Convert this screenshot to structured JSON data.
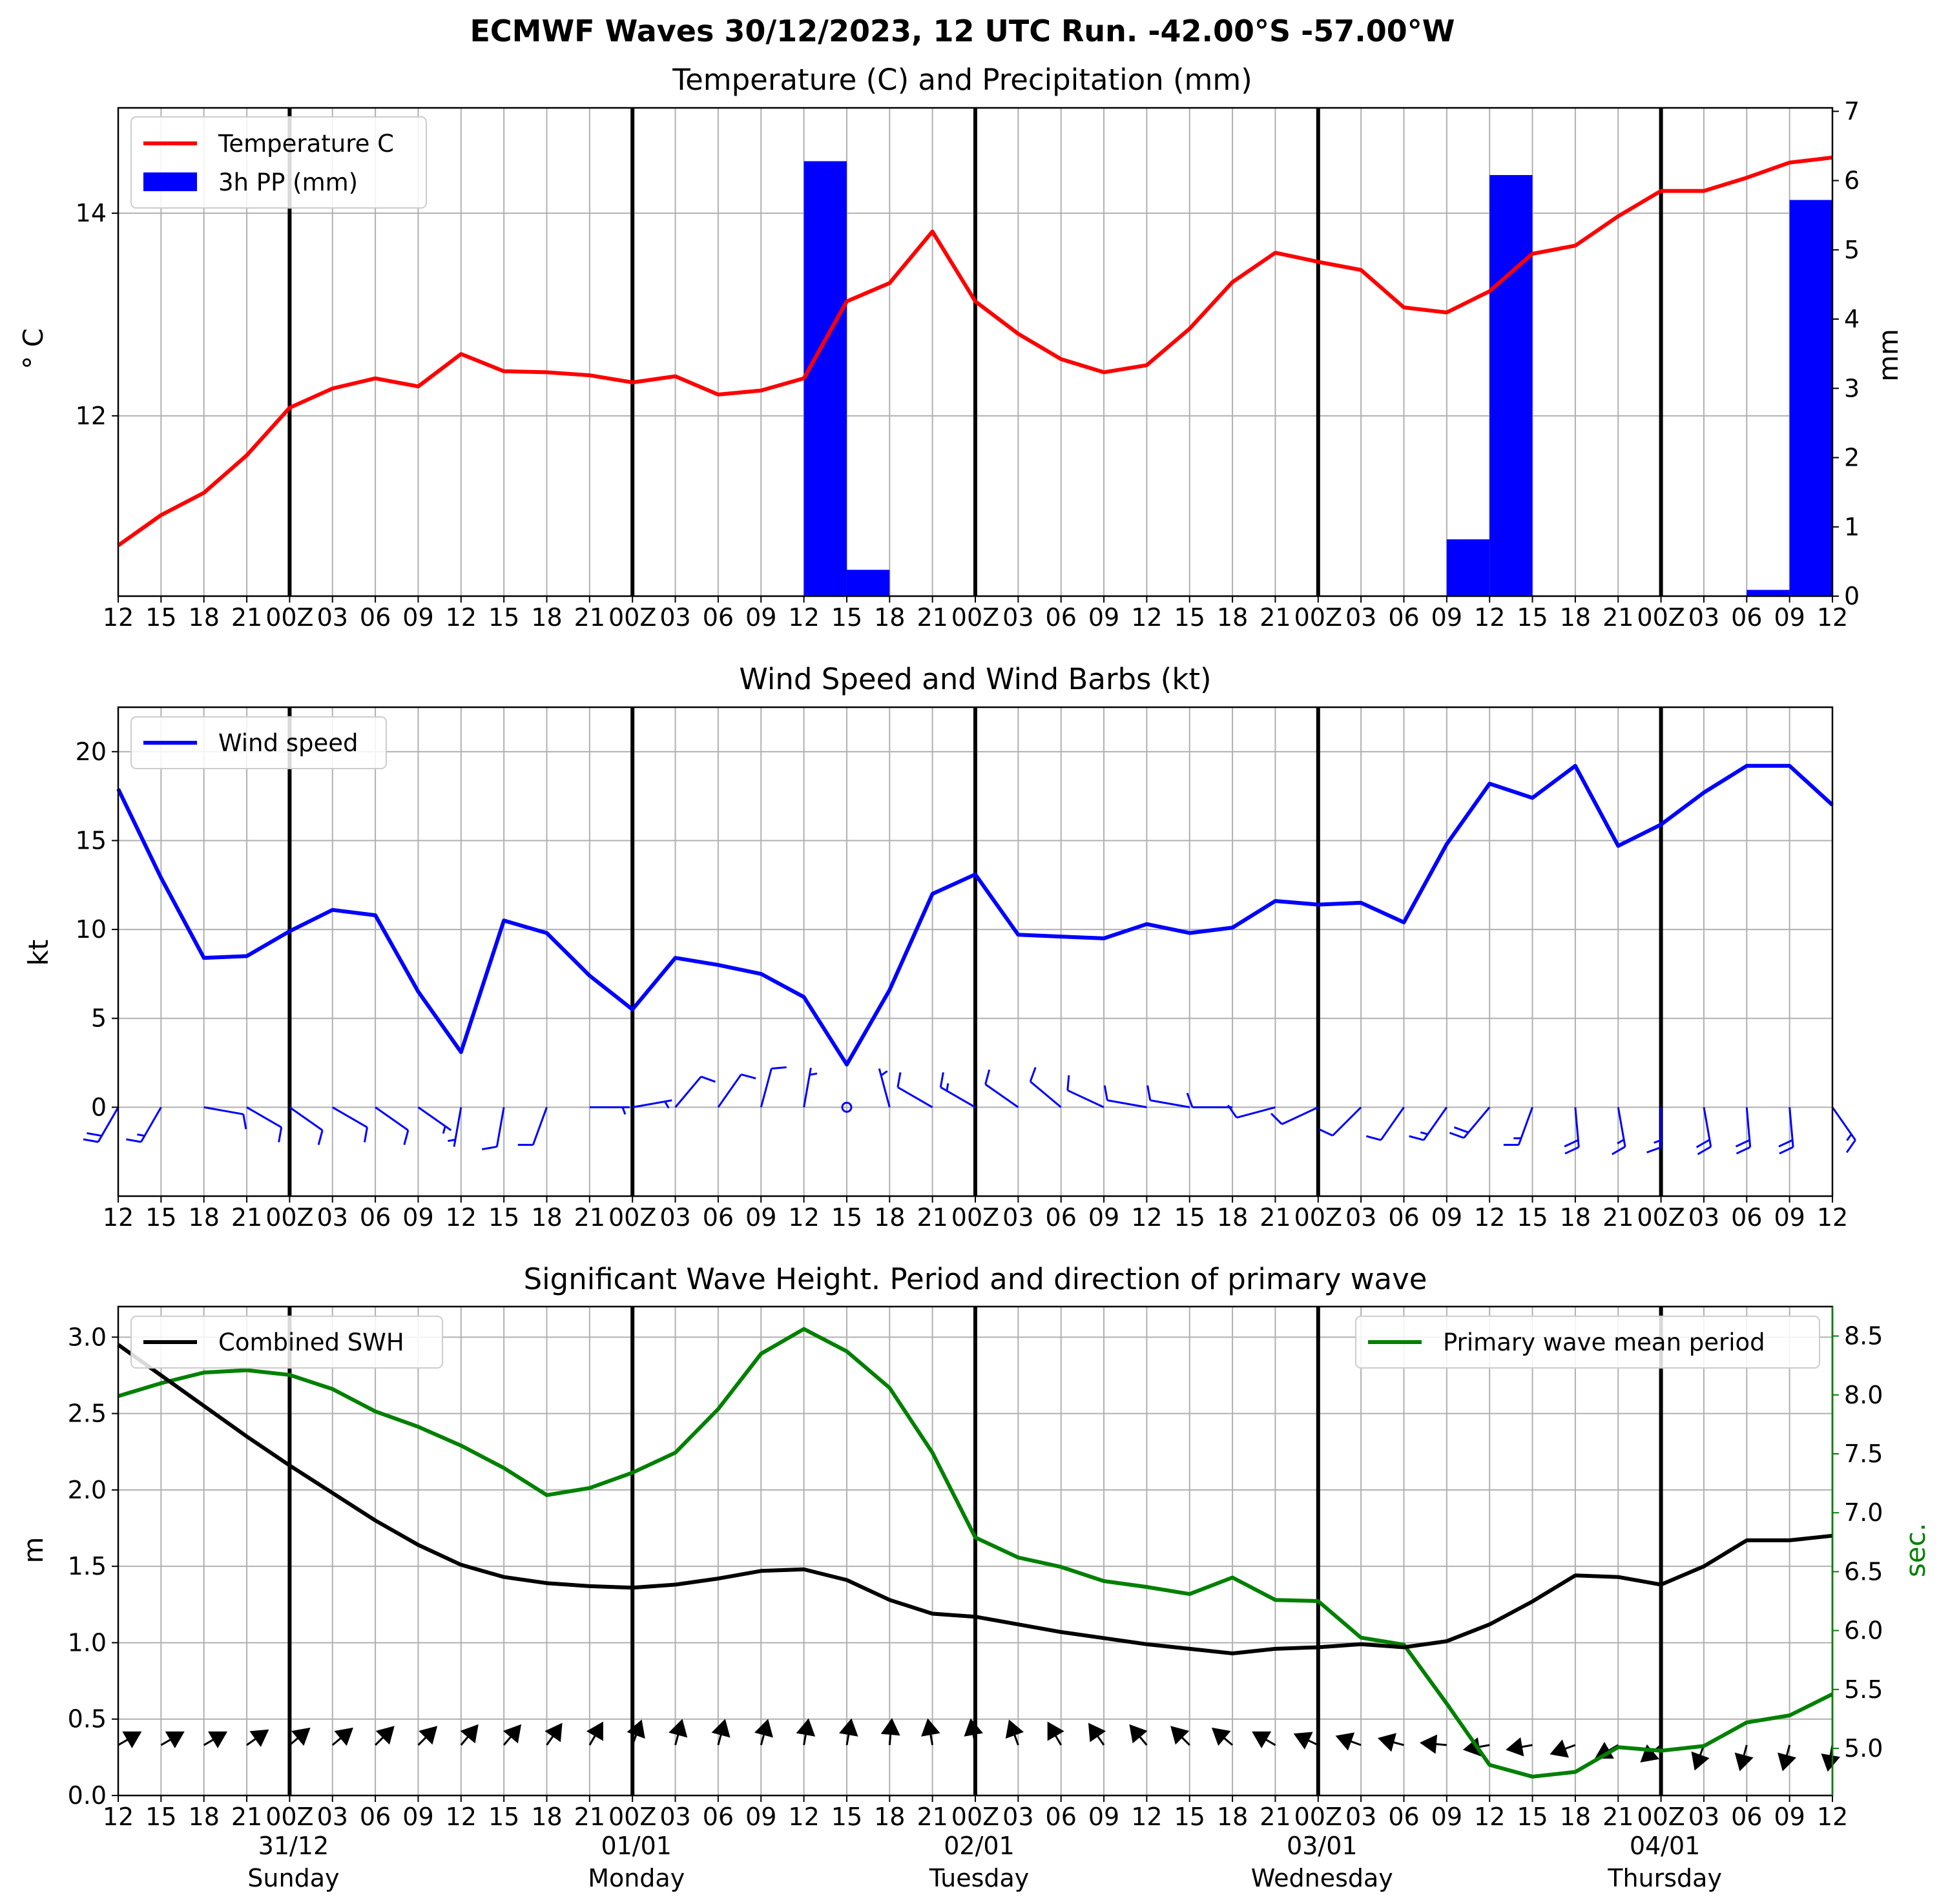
{
  "suptitle": "ECMWF Waves 30/12/2023, 12 UTC Run. -42.00°S -57.00°W",
  "colors": {
    "temperature": "#ff0000",
    "precipitation": "#0000ff",
    "wind": "#0000ff",
    "swh": "#000000",
    "period": "#008000",
    "grid": "#b0b0b0"
  },
  "x_tick_labels": [
    "12",
    "15",
    "18",
    "21",
    "00Z",
    "03",
    "06",
    "09",
    "12",
    "15",
    "18",
    "21",
    "00Z",
    "03",
    "06",
    "09",
    "12",
    "15",
    "18",
    "21",
    "00Z",
    "03",
    "06",
    "09",
    "12",
    "15",
    "18",
    "21",
    "00Z",
    "03",
    "06",
    "09",
    "12",
    "15",
    "18",
    "21",
    "00Z",
    "03",
    "06",
    "09",
    "12"
  ],
  "day_labels": [
    {
      "date": "31/12",
      "weekday": "Sunday"
    },
    {
      "date": "01/01",
      "weekday": "Monday"
    },
    {
      "date": "02/01",
      "weekday": "Tuesday"
    },
    {
      "date": "03/01",
      "weekday": "Wednesday"
    },
    {
      "date": "04/01",
      "weekday": "Thursday"
    }
  ],
  "chart_data": [
    {
      "type": "bar",
      "title": "Temperature (C) and Precipitation (mm)",
      "x_hours": [
        0,
        3,
        6,
        9,
        12,
        15,
        18,
        21,
        24,
        27,
        30,
        33,
        36,
        39,
        42,
        45,
        48,
        51,
        54,
        57,
        60,
        63,
        66,
        69,
        72,
        75,
        78,
        81,
        84,
        87,
        90,
        93,
        96,
        99,
        102,
        105,
        108,
        111,
        114,
        117,
        120
      ],
      "grid": true,
      "legend_position": "upper left",
      "ylabel": "$^\\circ$C",
      "ylabel_display": "° C",
      "ylabel_right": "mm",
      "ylim": [
        10.22,
        15.04
      ],
      "y2lim": [
        0,
        7.05
      ],
      "yticks": [
        12,
        14
      ],
      "y2ticks": [
        0,
        1,
        2,
        3,
        4,
        5,
        6,
        7
      ],
      "series": [
        {
          "name": "Temperature C",
          "type": "line",
          "values": [
            10.72,
            11.02,
            11.24,
            11.61,
            12.08,
            12.27,
            12.37,
            12.29,
            12.61,
            12.44,
            12.43,
            12.4,
            12.33,
            12.39,
            12.21,
            12.25,
            12.37,
            13.13,
            13.31,
            13.82,
            13.13,
            12.81,
            12.56,
            12.43,
            12.5,
            12.86,
            13.32,
            13.61,
            13.52,
            13.44,
            13.07,
            13.02,
            13.23,
            13.6,
            13.68,
            13.97,
            14.22,
            14.22,
            14.35,
            14.5,
            14.55
          ]
        },
        {
          "name": "3h PP (mm)",
          "type": "bar",
          "axis": "right",
          "bars": [
            {
              "x": 48,
              "value": 6.28
            },
            {
              "x": 51,
              "value": 0.38
            },
            {
              "x": 93,
              "value": 0.82
            },
            {
              "x": 96,
              "value": 6.08
            },
            {
              "x": 114,
              "value": 0.09
            },
            {
              "x": 117,
              "value": 5.72
            }
          ]
        }
      ]
    },
    {
      "type": "line",
      "title": "Wind Speed and Wind Barbs (kt)",
      "x_hours": [
        0,
        3,
        6,
        9,
        12,
        15,
        18,
        21,
        24,
        27,
        30,
        33,
        36,
        39,
        42,
        45,
        48,
        51,
        54,
        57,
        60,
        63,
        66,
        69,
        72,
        75,
        78,
        81,
        84,
        87,
        90,
        93,
        96,
        99,
        102,
        105,
        108,
        111,
        114,
        117,
        120
      ],
      "grid": true,
      "legend_position": "upper left",
      "ylabel": "kt",
      "ylim": [
        -5,
        22.5
      ],
      "yticks": [
        0,
        5,
        10,
        15,
        20
      ],
      "series": [
        {
          "name": "Wind speed",
          "values": [
            17.9,
            12.9,
            8.4,
            8.5,
            9.9,
            11.1,
            10.8,
            6.5,
            3.1,
            10.5,
            9.8,
            7.4,
            5.5,
            8.4,
            8.0,
            7.5,
            6.2,
            2.4,
            6.6,
            12.0,
            13.1,
            9.7,
            9.6,
            9.5,
            10.3,
            9.8,
            10.1,
            11.6,
            11.4,
            11.5,
            10.4,
            14.8,
            18.2,
            17.4,
            19.2,
            14.7,
            15.9,
            17.7,
            19.2,
            19.2,
            17.0
          ]
        }
      ],
      "wind_barb_direction_from_deg": [
        210,
        210,
        100,
        120,
        125,
        120,
        125,
        125,
        190,
        190,
        200,
        90,
        80,
        40,
        35,
        15,
        10,
        0,
        345,
        300,
        300,
        305,
        310,
        295,
        280,
        280,
        270,
        255,
        245,
        225,
        215,
        215,
        220,
        200,
        175,
        170,
        180,
        170,
        175,
        175,
        145
      ]
    },
    {
      "type": "line",
      "title": "Significant Wave Height. Period and direction of primary wave",
      "x_hours": [
        0,
        3,
        6,
        9,
        12,
        15,
        18,
        21,
        24,
        27,
        30,
        33,
        36,
        39,
        42,
        45,
        48,
        51,
        54,
        57,
        60,
        63,
        66,
        69,
        72,
        75,
        78,
        81,
        84,
        87,
        90,
        93,
        96,
        99,
        102,
        105,
        108,
        111,
        114,
        117,
        120
      ],
      "grid": true,
      "ylabel": "m",
      "ylabel_right": "sec.",
      "ylim": [
        0,
        3.2
      ],
      "y2lim": [
        4.6,
        8.75
      ],
      "yticks": [
        0.0,
        0.5,
        1.0,
        1.5,
        2.0,
        2.5,
        3.0
      ],
      "y2ticks": [
        5.0,
        5.5,
        6.0,
        6.5,
        7.0,
        7.5,
        8.0,
        8.5
      ],
      "series": [
        {
          "name": "Combined SWH",
          "axis": "left",
          "legend_position": "upper left",
          "values": [
            2.95,
            2.75,
            2.55,
            2.35,
            2.16,
            1.98,
            1.8,
            1.64,
            1.51,
            1.43,
            1.39,
            1.37,
            1.36,
            1.38,
            1.42,
            1.47,
            1.48,
            1.41,
            1.28,
            1.19,
            1.17,
            1.12,
            1.07,
            1.03,
            0.99,
            0.96,
            0.93,
            0.96,
            0.97,
            0.99,
            0.97,
            1.01,
            1.12,
            1.27,
            1.44,
            1.43,
            1.38,
            1.5,
            1.67,
            1.67,
            1.7
          ]
        },
        {
          "name": "Primary wave mean period",
          "axis": "right",
          "legend_position": "upper right",
          "values": [
            7.99,
            8.1,
            8.19,
            8.21,
            8.17,
            8.05,
            7.86,
            7.73,
            7.57,
            7.38,
            7.15,
            7.21,
            7.34,
            7.51,
            7.88,
            8.35,
            8.56,
            8.37,
            8.06,
            7.51,
            6.79,
            6.62,
            6.54,
            6.42,
            6.37,
            6.31,
            6.45,
            6.26,
            6.25,
            5.94,
            5.88,
            5.38,
            4.86,
            4.76,
            4.8,
            5.01,
            4.98,
            5.02,
            5.22,
            5.28,
            5.46
          ]
        }
      ],
      "wave_direction_to_deg": [
        60,
        60,
        60,
        55,
        50,
        50,
        45,
        45,
        40,
        40,
        35,
        30,
        20,
        15,
        15,
        15,
        10,
        10,
        5,
        350,
        350,
        340,
        330,
        325,
        320,
        315,
        310,
        300,
        295,
        290,
        285,
        275,
        260,
        260,
        250,
        240,
        230,
        200,
        195,
        195,
        190
      ]
    }
  ]
}
